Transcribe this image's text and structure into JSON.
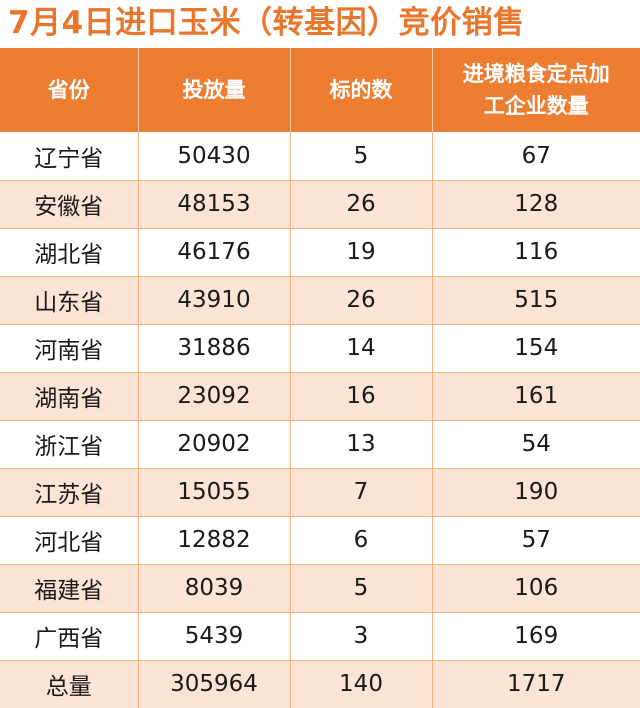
{
  "title": "7月4日进口玉米（转基因）竞价销售",
  "colors": {
    "title": "#E8762C",
    "header_bg": "#ED7D31",
    "header_text": "#FFFFFF",
    "row_alt_bg": "#FBE4D5",
    "grid_line": "#F4B184"
  },
  "table": {
    "headers": [
      "省份",
      "投放量",
      "标的数",
      "进境粮食定点加工企业数量"
    ],
    "rows": [
      [
        "辽宁省",
        "50430",
        "5",
        "67"
      ],
      [
        "安徽省",
        "48153",
        "26",
        "128"
      ],
      [
        "湖北省",
        "46176",
        "19",
        "116"
      ],
      [
        "山东省",
        "43910",
        "26",
        "515"
      ],
      [
        "河南省",
        "31886",
        "14",
        "154"
      ],
      [
        "湖南省",
        "23092",
        "16",
        "161"
      ],
      [
        "浙江省",
        "20902",
        "13",
        "54"
      ],
      [
        "江苏省",
        "15055",
        "7",
        "190"
      ],
      [
        "河北省",
        "12882",
        "6",
        "57"
      ],
      [
        "福建省",
        "8039",
        "5",
        "106"
      ],
      [
        "广西省",
        "5439",
        "3",
        "169"
      ]
    ],
    "total": [
      "总量",
      "305964",
      "140",
      "1717"
    ]
  }
}
